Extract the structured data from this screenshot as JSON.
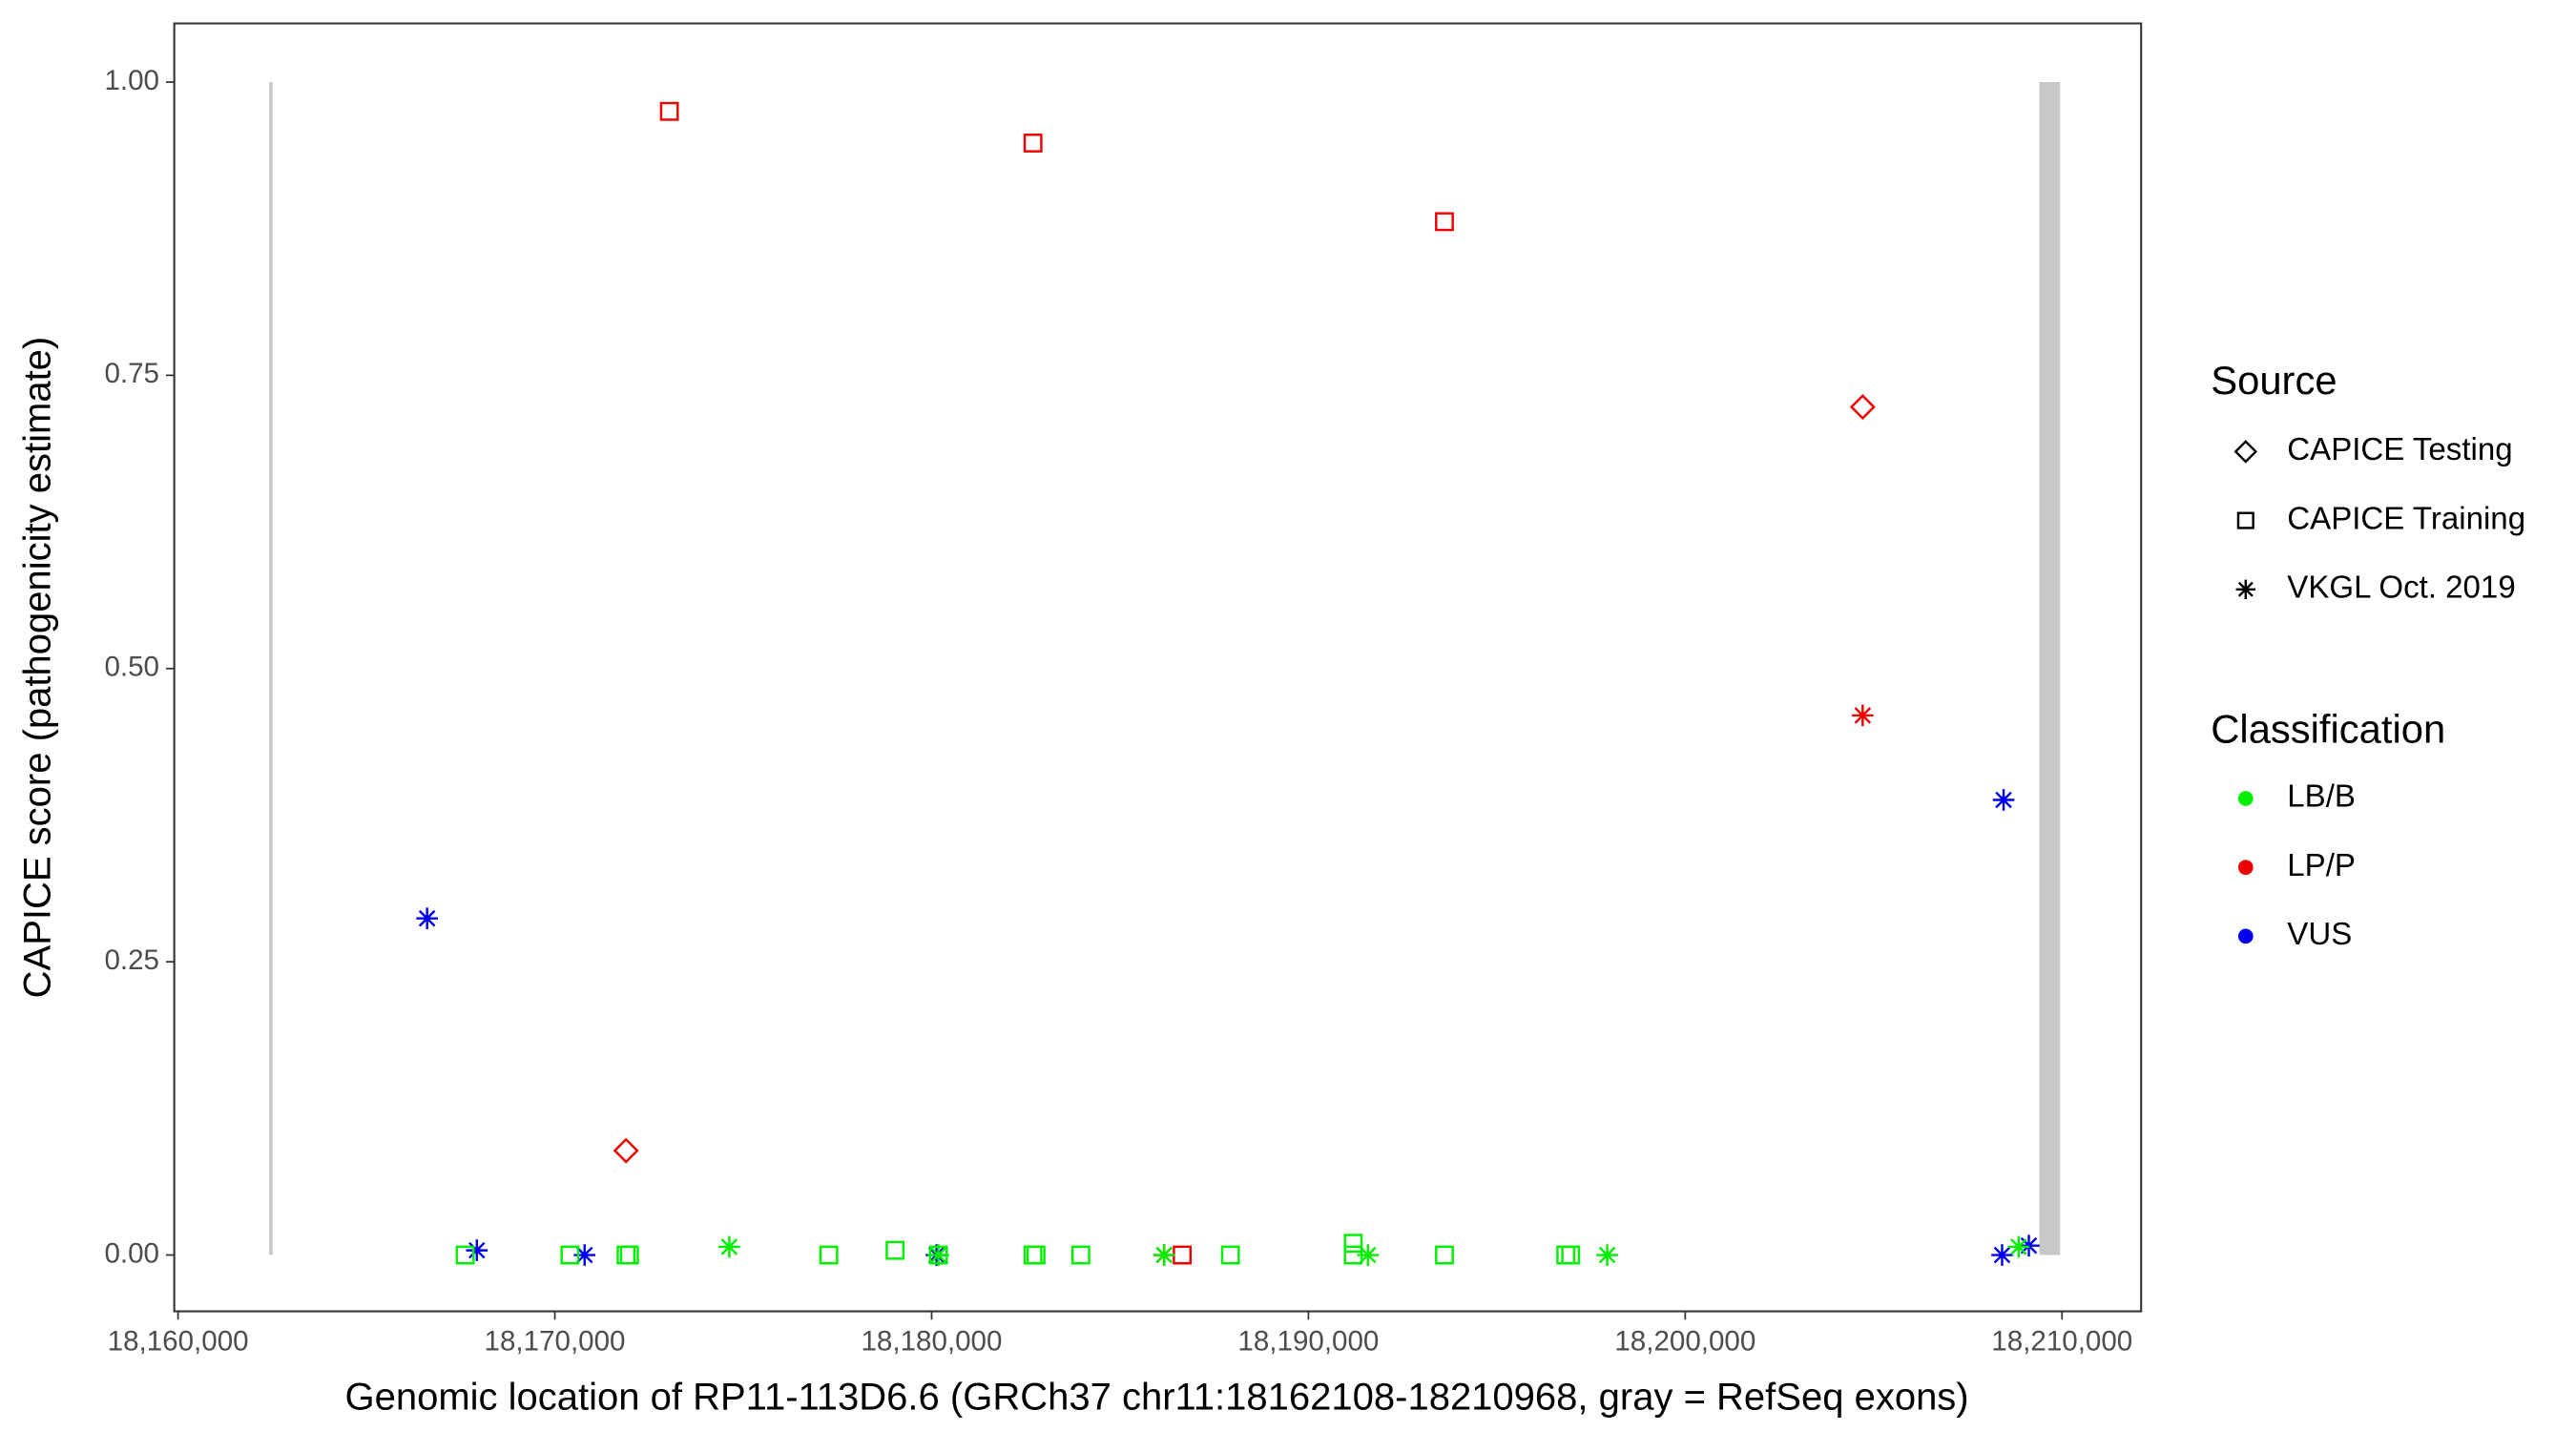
{
  "chart_data": {
    "type": "scatter",
    "x_label": "Genomic location of RP11-113D6.6 (GRCh37 chr11:18162108-18210968, gray = RefSeq exons)",
    "y_label": "CAPICE score (pathogenicity estimate)",
    "xlim": [
      18159900,
      18212100
    ],
    "xticks": [
      {
        "value": 18160000,
        "label": "18,160,000"
      },
      {
        "value": 18170000,
        "label": "18,170,000"
      },
      {
        "value": 18180000,
        "label": "18,180,000"
      },
      {
        "value": 18190000,
        "label": "18,190,000"
      },
      {
        "value": 18200000,
        "label": "18,200,000"
      },
      {
        "value": 18210000,
        "label": "18,210,000"
      }
    ],
    "ylim": [
      -0.048,
      1.05
    ],
    "yticks": [
      {
        "value": 0,
        "label": "0.00"
      },
      {
        "value": 0.25,
        "label": "0.25"
      },
      {
        "value": 0.5,
        "label": "0.50"
      },
      {
        "value": 0.75,
        "label": "0.75"
      },
      {
        "value": 1,
        "label": "1.00"
      }
    ],
    "exons": [
      [
        18162420,
        18162470
      ],
      [
        18209400,
        18209950
      ]
    ],
    "exon_color": "#c8c8c8",
    "source_title": "Source",
    "sources": [
      {
        "name": "CAPICE Testing",
        "shape": "diamond"
      },
      {
        "name": "CAPICE Training",
        "shape": "square"
      },
      {
        "name": "VKGL Oct. 2019",
        "shape": "star"
      }
    ],
    "classification_title": "Classification",
    "classifications": [
      {
        "name": "LB/B",
        "color": "#00ee00"
      },
      {
        "name": "LP/P",
        "color": "#ee0000"
      },
      {
        "name": "VUS",
        "color": "#0000ee"
      }
    ],
    "series": [
      {
        "source": 1,
        "classification": 1,
        "x": [
          18173040,
          18182690,
          18193610,
          18186650
        ],
        "values": [
          0.975,
          0.948,
          0.881,
          0
        ]
      },
      {
        "source": 0,
        "classification": 1,
        "x": [
          18171890,
          18204710
        ],
        "values": [
          0.089,
          0.723
        ]
      },
      {
        "source": 2,
        "classification": 1,
        "x": [
          18204710,
          18186170
        ],
        "values": [
          0.46,
          0
        ]
      },
      {
        "source": 2,
        "classification": 2,
        "x": [
          18166610,
          18167930,
          18170790,
          18180130,
          18208450,
          18208410,
          18209120
        ],
        "values": [
          0.287,
          0.004,
          0,
          0,
          0.388,
          0,
          0.008
        ]
      },
      {
        "source": 1,
        "classification": 0,
        "x": [
          18167620,
          18170400,
          18171890,
          18171980,
          18177270,
          18179030,
          18180180,
          18182690,
          18182770,
          18183960,
          18187930,
          18191190,
          18191190,
          18193610,
          18196830,
          18196960
        ],
        "values": [
          0,
          0,
          0,
          0,
          0,
          0.004,
          0,
          0,
          0,
          0,
          0,
          0.01,
          0,
          0,
          0,
          0
        ]
      },
      {
        "source": 2,
        "classification": 0,
        "x": [
          18174630,
          18180180,
          18186170,
          18191580,
          18197930,
          18208850
        ],
        "values": [
          0.007,
          0,
          0,
          0,
          0,
          0.007
        ]
      }
    ]
  }
}
